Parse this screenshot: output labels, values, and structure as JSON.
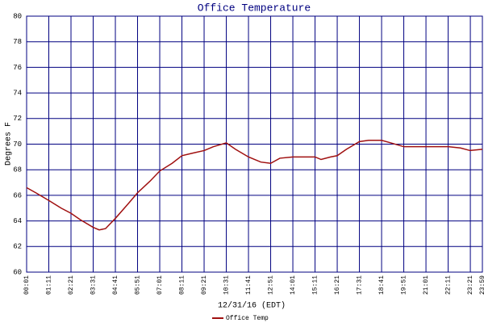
{
  "chart_data": {
    "type": "line",
    "title": "Office Temperature",
    "x_label": "12/31/16 (EDT)",
    "y_label": "Degrees F",
    "x": [
      1,
      30,
      71,
      110,
      141,
      170,
      211,
      230,
      250,
      281,
      320,
      351,
      390,
      421,
      460,
      491,
      525,
      561,
      590,
      631,
      660,
      701,
      740,
      771,
      800,
      841,
      880,
      911,
      930,
      960,
      981,
      1010,
      1051,
      1080,
      1121,
      1150,
      1191,
      1230,
      1261,
      1300,
      1331,
      1370,
      1400,
      1439
    ],
    "series": [
      {
        "name": "Office Temp",
        "color": "#a01010",
        "values": [
          66.6,
          66.2,
          65.6,
          65.0,
          64.6,
          64.1,
          63.5,
          63.3,
          63.4,
          64.2,
          65.3,
          66.2,
          67.1,
          67.9,
          68.5,
          69.1,
          69.3,
          69.5,
          69.8,
          70.1,
          69.6,
          69.0,
          68.6,
          68.5,
          68.9,
          69.0,
          69.0,
          69.0,
          68.8,
          69.0,
          69.1,
          69.6,
          70.2,
          70.3,
          70.3,
          70.1,
          69.8,
          69.8,
          69.8,
          69.8,
          69.8,
          69.7,
          69.5,
          69.6
        ]
      }
    ],
    "xlim": [
      1,
      1439
    ],
    "xticks": [
      {
        "value": 1,
        "label": "00:01"
      },
      {
        "value": 71,
        "label": "01:11"
      },
      {
        "value": 141,
        "label": "02:21"
      },
      {
        "value": 211,
        "label": "03:31"
      },
      {
        "value": 281,
        "label": "04:41"
      },
      {
        "value": 351,
        "label": "05:51"
      },
      {
        "value": 421,
        "label": "07:01"
      },
      {
        "value": 491,
        "label": "08:11"
      },
      {
        "value": 561,
        "label": "09:21"
      },
      {
        "value": 631,
        "label": "10:31"
      },
      {
        "value": 701,
        "label": "11:41"
      },
      {
        "value": 771,
        "label": "12:51"
      },
      {
        "value": 841,
        "label": "14:01"
      },
      {
        "value": 911,
        "label": "15:11"
      },
      {
        "value": 981,
        "label": "16:21"
      },
      {
        "value": 1051,
        "label": "17:31"
      },
      {
        "value": 1121,
        "label": "18:41"
      },
      {
        "value": 1191,
        "label": "19:51"
      },
      {
        "value": 1261,
        "label": "21:01"
      },
      {
        "value": 1331,
        "label": "22:11"
      },
      {
        "value": 1401,
        "label": "23:21"
      },
      {
        "value": 1439,
        "label": "23:59"
      }
    ],
    "ylim": [
      60,
      80
    ],
    "yticks": [
      60,
      62,
      64,
      66,
      68,
      70,
      72,
      74,
      76,
      78,
      80
    ],
    "grid": true
  }
}
